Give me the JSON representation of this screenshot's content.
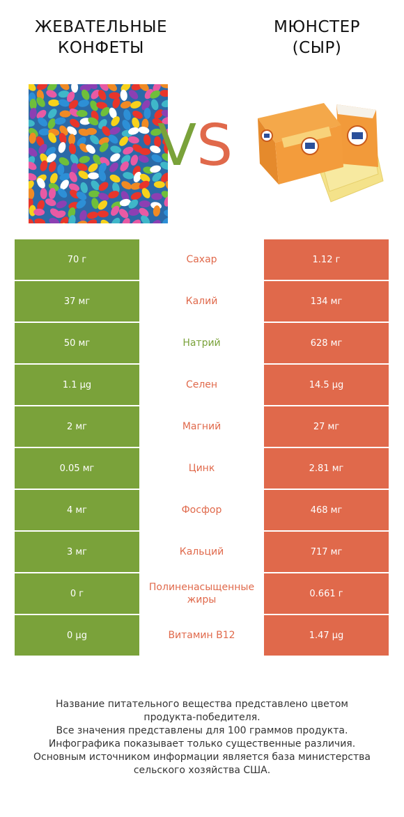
{
  "left_product": {
    "title": "ЖЕВАТЕЛЬНЫЕ\nКОНФЕТЫ",
    "line1": "ЖЕВАТЕЛЬНЫЕ",
    "line2": "КОНФЕТЫ",
    "image_name": "jelly-beans-image"
  },
  "right_product": {
    "title": "МЮНСТЕР\n(СЫР)",
    "line1": "МЮНСТЕР",
    "line2": "(СЫР)",
    "image_name": "munster-cheese-image"
  },
  "vs_label": {
    "v": "V",
    "s": "S"
  },
  "colors": {
    "green": "#7aa23a",
    "orange": "#e0694b"
  },
  "rows": [
    {
      "left": "70 г",
      "nutrient": "Сахар",
      "right": "1.12 г",
      "winner": "right"
    },
    {
      "left": "37 мг",
      "nutrient": "Калий",
      "right": "134 мг",
      "winner": "right"
    },
    {
      "left": "50 мг",
      "nutrient": "Натрий",
      "right": "628 мг",
      "winner": "left"
    },
    {
      "left": "1.1 µg",
      "nutrient": "Селен",
      "right": "14.5 µg",
      "winner": "right"
    },
    {
      "left": "2 мг",
      "nutrient": "Магний",
      "right": "27 мг",
      "winner": "right"
    },
    {
      "left": "0.05 мг",
      "nutrient": "Цинк",
      "right": "2.81 мг",
      "winner": "right"
    },
    {
      "left": "4 мг",
      "nutrient": "Фосфор",
      "right": "468 мг",
      "winner": "right"
    },
    {
      "left": "3 мг",
      "nutrient": "Кальций",
      "right": "717 мг",
      "winner": "right"
    },
    {
      "left": "0 г",
      "nutrient": "Полиненасыщенные жиры",
      "right": "0.661 г",
      "winner": "right"
    },
    {
      "left": "0 µg",
      "nutrient": "Витамин B12",
      "right": "1.47 µg",
      "winner": "right"
    }
  ],
  "footer": {
    "line1": "Название питательного вещества представлено цветом",
    "line2": "продукта-победителя.",
    "line3": "Все значения представлены для 100 граммов продукта.",
    "line4": "Инфографика показывает только существенные различия.",
    "line5": "Основным источником информации является база министерства",
    "line6": "сельского хозяйства США."
  }
}
